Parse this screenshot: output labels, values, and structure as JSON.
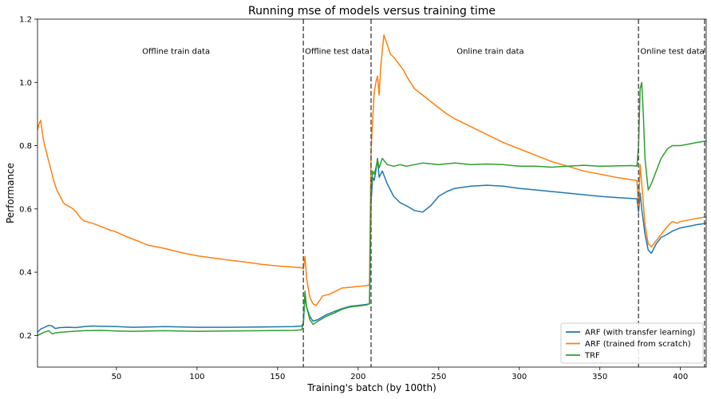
{
  "chart_data": {
    "type": "line",
    "title": "Running mse of models versus training time",
    "xlabel": "Training's batch (by 100th)",
    "ylabel": "Performance",
    "xlim": [
      1,
      416
    ],
    "ylim": [
      0.1,
      1.2
    ],
    "xticks": [
      50,
      100,
      150,
      200,
      250,
      300,
      350,
      400
    ],
    "yticks": [
      0.2,
      0.4,
      0.6,
      0.8,
      1.0,
      1.2
    ],
    "ytick_labels": [
      "0.2",
      "0.4",
      "0.6",
      "0.8",
      "1.0",
      "1.2"
    ],
    "grid": false,
    "legend_position": "bottom-right",
    "vlines": [
      166,
      208,
      374,
      415
    ],
    "regions": [
      {
        "label": "Offline train data",
        "x": 87
      },
      {
        "label": "Offline test data",
        "x": 187
      },
      {
        "label": "Online train data",
        "x": 282
      },
      {
        "label": "Online test data",
        "x": 395
      }
    ],
    "region_label_y": 1.1,
    "series": [
      {
        "name": "ARF (with transfer learning)",
        "color": "#1f77b4",
        "points": [
          [
            1,
            0.21
          ],
          [
            3,
            0.22
          ],
          [
            5,
            0.225
          ],
          [
            8,
            0.232
          ],
          [
            10,
            0.23
          ],
          [
            12,
            0.222
          ],
          [
            15,
            0.225
          ],
          [
            20,
            0.226
          ],
          [
            25,
            0.225
          ],
          [
            30,
            0.228
          ],
          [
            35,
            0.23
          ],
          [
            40,
            0.229
          ],
          [
            50,
            0.228
          ],
          [
            60,
            0.226
          ],
          [
            70,
            0.227
          ],
          [
            80,
            0.228
          ],
          [
            100,
            0.226
          ],
          [
            120,
            0.226
          ],
          [
            140,
            0.227
          ],
          [
            160,
            0.228
          ],
          [
            165,
            0.23
          ],
          [
            166,
            0.24
          ],
          [
            167,
            0.325
          ],
          [
            168,
            0.29
          ],
          [
            170,
            0.26
          ],
          [
            172,
            0.245
          ],
          [
            175,
            0.25
          ],
          [
            180,
            0.265
          ],
          [
            185,
            0.275
          ],
          [
            190,
            0.285
          ],
          [
            195,
            0.292
          ],
          [
            200,
            0.295
          ],
          [
            205,
            0.298
          ],
          [
            207,
            0.3
          ],
          [
            208,
            0.62
          ],
          [
            209,
            0.7
          ],
          [
            210,
            0.69
          ],
          [
            211,
            0.72
          ],
          [
            212,
            0.76
          ],
          [
            213,
            0.7
          ],
          [
            215,
            0.72
          ],
          [
            218,
            0.68
          ],
          [
            222,
            0.64
          ],
          [
            226,
            0.62
          ],
          [
            230,
            0.61
          ],
          [
            235,
            0.595
          ],
          [
            240,
            0.59
          ],
          [
            245,
            0.61
          ],
          [
            250,
            0.64
          ],
          [
            255,
            0.655
          ],
          [
            260,
            0.665
          ],
          [
            270,
            0.672
          ],
          [
            280,
            0.675
          ],
          [
            290,
            0.672
          ],
          [
            300,
            0.665
          ],
          [
            310,
            0.66
          ],
          [
            320,
            0.655
          ],
          [
            330,
            0.65
          ],
          [
            340,
            0.645
          ],
          [
            350,
            0.64
          ],
          [
            360,
            0.636
          ],
          [
            370,
            0.633
          ],
          [
            373,
            0.632
          ],
          [
            374,
            0.59
          ],
          [
            375,
            0.65
          ],
          [
            376,
            0.6
          ],
          [
            378,
            0.52
          ],
          [
            380,
            0.47
          ],
          [
            382,
            0.46
          ],
          [
            385,
            0.49
          ],
          [
            388,
            0.51
          ],
          [
            392,
            0.52
          ],
          [
            395,
            0.53
          ],
          [
            400,
            0.54
          ],
          [
            405,
            0.545
          ],
          [
            410,
            0.55
          ],
          [
            416,
            0.555
          ]
        ]
      },
      {
        "name": "ARF (trained from scratch)",
        "color": "#ff7f0e",
        "points": [
          [
            1,
            0.85
          ],
          [
            2,
            0.87
          ],
          [
            3,
            0.88
          ],
          [
            4,
            0.84
          ],
          [
            5,
            0.81
          ],
          [
            7,
            0.77
          ],
          [
            9,
            0.73
          ],
          [
            11,
            0.69
          ],
          [
            13,
            0.66
          ],
          [
            15,
            0.64
          ],
          [
            17,
            0.62
          ],
          [
            18,
            0.615
          ],
          [
            20,
            0.61
          ],
          [
            23,
            0.6
          ],
          [
            25,
            0.59
          ],
          [
            28,
            0.57
          ],
          [
            30,
            0.562
          ],
          [
            35,
            0.555
          ],
          [
            40,
            0.545
          ],
          [
            45,
            0.535
          ],
          [
            50,
            0.527
          ],
          [
            55,
            0.515
          ],
          [
            60,
            0.505
          ],
          [
            65,
            0.495
          ],
          [
            70,
            0.485
          ],
          [
            80,
            0.475
          ],
          [
            90,
            0.462
          ],
          [
            100,
            0.452
          ],
          [
            110,
            0.445
          ],
          [
            120,
            0.438
          ],
          [
            130,
            0.432
          ],
          [
            140,
            0.425
          ],
          [
            150,
            0.42
          ],
          [
            160,
            0.416
          ],
          [
            165,
            0.414
          ],
          [
            166,
            0.41
          ],
          [
            167,
            0.45
          ],
          [
            168,
            0.38
          ],
          [
            170,
            0.32
          ],
          [
            172,
            0.3
          ],
          [
            174,
            0.295
          ],
          [
            176,
            0.31
          ],
          [
            178,
            0.325
          ],
          [
            182,
            0.33
          ],
          [
            186,
            0.34
          ],
          [
            190,
            0.35
          ],
          [
            195,
            0.352
          ],
          [
            200,
            0.355
          ],
          [
            205,
            0.357
          ],
          [
            207,
            0.36
          ],
          [
            208,
            0.78
          ],
          [
            209,
            0.88
          ],
          [
            210,
            0.97
          ],
          [
            211,
            1.0
          ],
          [
            212,
            1.02
          ],
          [
            213,
            0.96
          ],
          [
            214,
            1.05
          ],
          [
            215,
            1.1
          ],
          [
            216,
            1.15
          ],
          [
            218,
            1.12
          ],
          [
            220,
            1.09
          ],
          [
            222,
            1.08
          ],
          [
            225,
            1.06
          ],
          [
            228,
            1.04
          ],
          [
            230,
            1.02
          ],
          [
            235,
            0.98
          ],
          [
            240,
            0.96
          ],
          [
            245,
            0.94
          ],
          [
            250,
            0.92
          ],
          [
            255,
            0.9
          ],
          [
            260,
            0.885
          ],
          [
            270,
            0.86
          ],
          [
            280,
            0.835
          ],
          [
            290,
            0.81
          ],
          [
            300,
            0.79
          ],
          [
            310,
            0.77
          ],
          [
            320,
            0.75
          ],
          [
            330,
            0.735
          ],
          [
            340,
            0.72
          ],
          [
            350,
            0.71
          ],
          [
            360,
            0.7
          ],
          [
            370,
            0.692
          ],
          [
            373,
            0.69
          ],
          [
            374,
            0.6
          ],
          [
            375,
            0.74
          ],
          [
            376,
            0.68
          ],
          [
            378,
            0.55
          ],
          [
            380,
            0.49
          ],
          [
            382,
            0.48
          ],
          [
            385,
            0.5
          ],
          [
            388,
            0.52
          ],
          [
            392,
            0.545
          ],
          [
            395,
            0.56
          ],
          [
            398,
            0.555
          ],
          [
            400,
            0.56
          ],
          [
            405,
            0.565
          ],
          [
            410,
            0.57
          ],
          [
            416,
            0.575
          ]
        ]
      },
      {
        "name": "TRF",
        "color": "#2ca02c",
        "points": [
          [
            1,
            0.2
          ],
          [
            3,
            0.205
          ],
          [
            5,
            0.21
          ],
          [
            8,
            0.215
          ],
          [
            10,
            0.205
          ],
          [
            12,
            0.208
          ],
          [
            15,
            0.21
          ],
          [
            20,
            0.212
          ],
          [
            30,
            0.215
          ],
          [
            40,
            0.216
          ],
          [
            50,
            0.214
          ],
          [
            60,
            0.213
          ],
          [
            70,
            0.214
          ],
          [
            80,
            0.215
          ],
          [
            100,
            0.213
          ],
          [
            120,
            0.214
          ],
          [
            140,
            0.215
          ],
          [
            160,
            0.216
          ],
          [
            165,
            0.218
          ],
          [
            166,
            0.24
          ],
          [
            167,
            0.34
          ],
          [
            168,
            0.29
          ],
          [
            170,
            0.25
          ],
          [
            172,
            0.235
          ],
          [
            175,
            0.245
          ],
          [
            180,
            0.26
          ],
          [
            185,
            0.27
          ],
          [
            190,
            0.283
          ],
          [
            195,
            0.29
          ],
          [
            200,
            0.293
          ],
          [
            205,
            0.296
          ],
          [
            207,
            0.3
          ],
          [
            208,
            0.66
          ],
          [
            209,
            0.72
          ],
          [
            210,
            0.71
          ],
          [
            211,
            0.73
          ],
          [
            212,
            0.755
          ],
          [
            213,
            0.73
          ],
          [
            215,
            0.76
          ],
          [
            218,
            0.74
          ],
          [
            222,
            0.735
          ],
          [
            226,
            0.74
          ],
          [
            230,
            0.735
          ],
          [
            235,
            0.74
          ],
          [
            240,
            0.745
          ],
          [
            250,
            0.74
          ],
          [
            260,
            0.745
          ],
          [
            270,
            0.74
          ],
          [
            280,
            0.742
          ],
          [
            290,
            0.74
          ],
          [
            300,
            0.735
          ],
          [
            310,
            0.735
          ],
          [
            320,
            0.732
          ],
          [
            330,
            0.735
          ],
          [
            340,
            0.738
          ],
          [
            350,
            0.735
          ],
          [
            360,
            0.736
          ],
          [
            370,
            0.737
          ],
          [
            373,
            0.735
          ],
          [
            374,
            0.8
          ],
          [
            375,
            0.98
          ],
          [
            376,
            1.0
          ],
          [
            377,
            0.9
          ],
          [
            378,
            0.76
          ],
          [
            380,
            0.66
          ],
          [
            382,
            0.68
          ],
          [
            385,
            0.72
          ],
          [
            388,
            0.76
          ],
          [
            392,
            0.79
          ],
          [
            395,
            0.8
          ],
          [
            400,
            0.8
          ],
          [
            405,
            0.805
          ],
          [
            410,
            0.81
          ],
          [
            416,
            0.815
          ]
        ]
      }
    ]
  }
}
